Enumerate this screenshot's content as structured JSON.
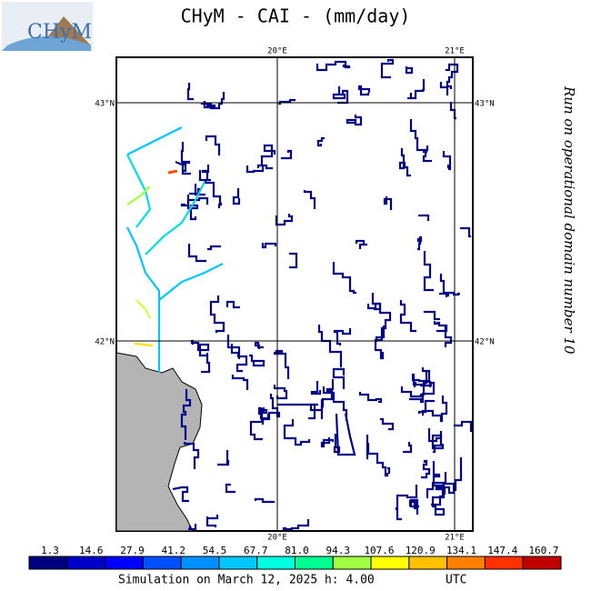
{
  "header": {
    "logo": "CHyM",
    "title": "CHyM - CAI - (mm/day)"
  },
  "side_text": "Run on operational domain number 10",
  "map": {
    "top_lon_labels": [
      "20°E",
      "21°E"
    ],
    "bottom_lon_labels": [
      "20°E",
      "21°E"
    ],
    "left_lat_labels": [
      "43°N",
      "42°N"
    ],
    "right_lat_labels": [
      "43°N",
      "42°N"
    ]
  },
  "legend": {
    "labels": [
      "1.3",
      "14.6",
      "27.9",
      "41.2",
      "54.5",
      "67.7",
      "81.0",
      "94.3",
      "107.6",
      "120.9",
      "134.1",
      "147.4",
      "160.7"
    ]
  },
  "footer": {
    "text": "Simulation on March 12, 2025 h: 4.00",
    "zone": "UTC"
  }
}
